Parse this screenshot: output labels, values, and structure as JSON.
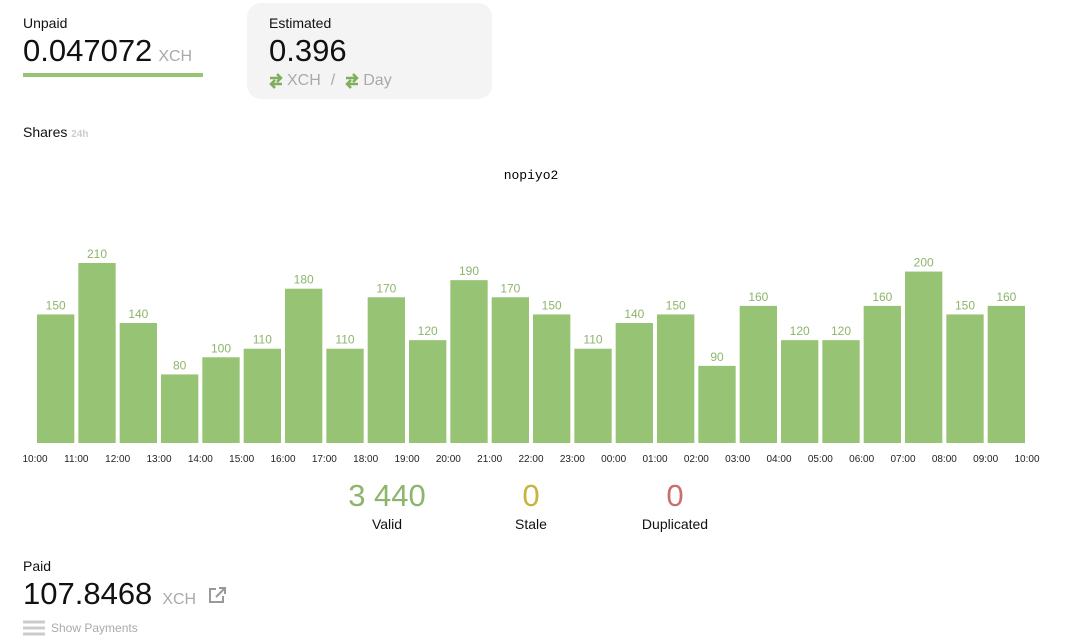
{
  "unpaid": {
    "label": "Unpaid",
    "value": "0.047072",
    "unit": "XCH"
  },
  "estimated": {
    "label": "Estimated",
    "value": "0.396",
    "unit": "XCH",
    "separator": "/",
    "period": "Day"
  },
  "shares": {
    "label": "Shares",
    "period": "24h"
  },
  "chart_data": {
    "type": "bar",
    "title": "nopiyo2",
    "x_labels": [
      "10:00",
      "11:00",
      "12:00",
      "13:00",
      "14:00",
      "15:00",
      "16:00",
      "17:00",
      "18:00",
      "19:00",
      "20:00",
      "21:00",
      "22:00",
      "23:00",
      "00:00",
      "01:00",
      "02:00",
      "03:00",
      "04:00",
      "05:00",
      "06:00",
      "07:00",
      "08:00",
      "09:00",
      "10:00"
    ],
    "values": [
      150,
      210,
      140,
      80,
      100,
      110,
      180,
      110,
      170,
      120,
      190,
      170,
      150,
      110,
      140,
      150,
      90,
      160,
      120,
      120,
      160,
      200,
      150,
      160
    ],
    "color": "#97c374",
    "label_color": "#8db56c"
  },
  "stats": [
    {
      "value": "3 440",
      "label": "Valid",
      "color": "#8db56c"
    },
    {
      "value": "0",
      "label": "Stale",
      "color": "#c9b33c"
    },
    {
      "value": "0",
      "label": "Duplicated",
      "color": "#cc6e6e"
    }
  ],
  "paid": {
    "label": "Paid",
    "value": "107.8468",
    "unit": "XCH",
    "link": "Show Payments"
  }
}
